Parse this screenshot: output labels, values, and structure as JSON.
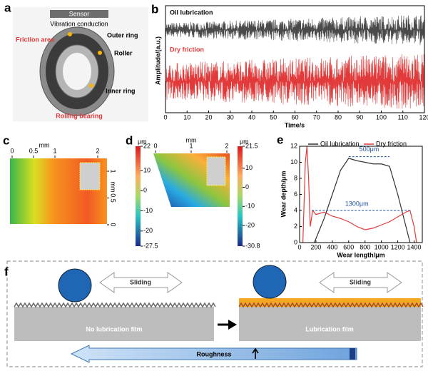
{
  "panel_a": {
    "label": "a",
    "sensor": "Sensor",
    "vibration": "Vibration conduction",
    "friction_area": "Friction area",
    "outer_ring": "Outer ring",
    "roller": "Roller",
    "inner_ring": "Inner ring",
    "caption": "Rolling bearing"
  },
  "chart_data": [
    {
      "type": "signal",
      "label": "b",
      "y_label": "Amplitude/(a.u.)",
      "x_label": "Time/s",
      "xlim": [
        0,
        120
      ],
      "xticks": [
        0,
        10,
        20,
        30,
        40,
        50,
        60,
        70,
        80,
        90,
        100,
        110,
        120
      ],
      "series": [
        {
          "name": "Oil lubrication",
          "color": "#4a4a4a"
        },
        {
          "name": "Dry friction",
          "color": "#e23a3a"
        }
      ]
    },
    {
      "type": "line",
      "label": "e",
      "x_label": "Wear length/μm",
      "y_label": "Wear depth/μm",
      "xlim": [
        0,
        1500
      ],
      "xticks": [
        0,
        200,
        400,
        600,
        800,
        1000,
        1200,
        1400
      ],
      "ylim": [
        0,
        12
      ],
      "yticks": [
        0,
        2,
        4,
        6,
        8,
        10,
        12
      ],
      "annotations": [
        "500μm",
        "1300μm"
      ],
      "series": [
        {
          "name": "Oil lubrication",
          "color": "#333333",
          "x": [
            180,
            300,
            400,
            500,
            600,
            700,
            800,
            900,
            1000,
            1100,
            1200,
            1300,
            1350
          ],
          "values": [
            0,
            3,
            6,
            9,
            10.5,
            10.2,
            10,
            9.8,
            9.8,
            9.5,
            6,
            2,
            0
          ]
        },
        {
          "name": "Dry friction",
          "color": "#e23a3a",
          "x": [
            40,
            70,
            90,
            110,
            130,
            160,
            200,
            300,
            400,
            500,
            600,
            700,
            800,
            900,
            1000,
            1100,
            1200,
            1300,
            1350,
            1400,
            1430
          ],
          "values": [
            0,
            10,
            12,
            8,
            2,
            4,
            3.5,
            3.8,
            3.3,
            3,
            2.6,
            2,
            1.6,
            1.8,
            2.2,
            2.6,
            3.2,
            3.8,
            4,
            2,
            0
          ]
        }
      ]
    }
  ],
  "panel_c": {
    "label": "c",
    "x_unit": "mm",
    "y_unit": "mm",
    "xticks": [
      0,
      0.5,
      1,
      2
    ],
    "yticks": [
      1,
      0.5,
      0
    ],
    "z_unit": "μm",
    "zlim": [
      -27.5,
      22
    ],
    "zticks": [
      -27.5,
      -20,
      -10,
      0,
      10,
      22
    ]
  },
  "panel_d": {
    "label": "d",
    "x_unit": "mm",
    "xticks": [
      0,
      1,
      2
    ],
    "z_unit": "μm",
    "zlim": [
      -30.8,
      21.5
    ],
    "zticks": [
      -30.8,
      -20,
      -10,
      0,
      10,
      21.5
    ]
  },
  "panel_f": {
    "label": "f",
    "sliding": [
      "Sliding",
      "Sliding"
    ],
    "no_film": "No lubrication film",
    "film": "Lubrication film",
    "roughness": "Roughness"
  }
}
